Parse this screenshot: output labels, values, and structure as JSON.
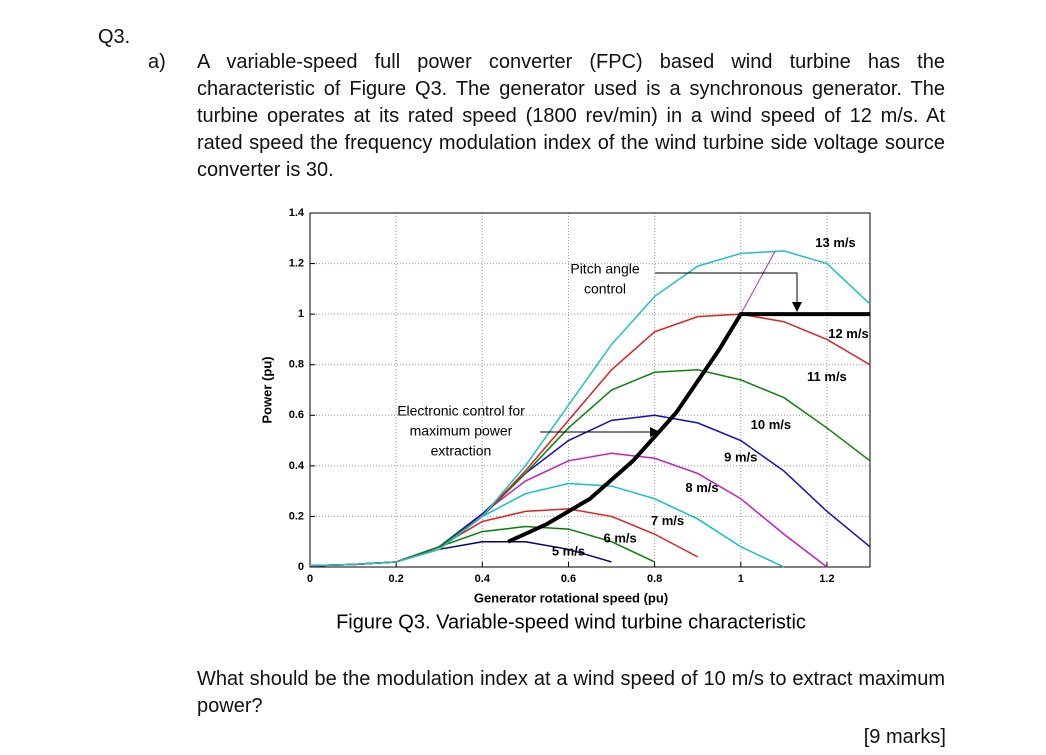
{
  "question": {
    "number": "Q3.",
    "part": "a)",
    "text": "A variable-speed full power converter (FPC) based wind turbine has the characteristic of Figure Q3. The generator used is a synchronous generator. The turbine operates at its rated speed (1800 rev/min) in a wind speed of 12 m/s. At rated speed the frequency modulation index of the wind turbine side voltage source converter is 30.",
    "caption": "Figure Q3. Variable-speed wind turbine characteristic",
    "prompt": "What should be the modulation index at a wind speed of 10 m/s to extract maximum power?",
    "marks": "[9 marks]"
  },
  "chart_data": {
    "type": "line",
    "x_label": "Generator rotational speed (pu)",
    "y_label": "Power (pu)",
    "x": [
      0,
      0.1,
      0.2,
      0.3,
      0.4,
      0.5,
      0.6,
      0.7,
      0.8,
      0.9,
      1.0,
      1.1,
      1.2,
      1.3
    ],
    "xlim": [
      0,
      1.3
    ],
    "ylim": [
      0,
      1.4
    ],
    "xticks": [
      0,
      0.2,
      0.4,
      0.6,
      0.8,
      1,
      1.2
    ],
    "yticks": [
      0,
      0.2,
      0.4,
      0.6,
      0.8,
      1,
      1.2,
      1.4
    ],
    "grid": true,
    "series": [
      {
        "name": "5 m/s",
        "color": "#000080",
        "values": [
          0.005,
          0.01,
          0.02,
          0.07,
          0.1,
          0.1,
          0.07,
          0.02,
          null,
          null,
          null,
          null,
          null,
          null
        ]
      },
      {
        "name": "6 m/s",
        "color": "#008000",
        "values": [
          0.005,
          0.01,
          0.02,
          0.08,
          0.14,
          0.16,
          0.15,
          0.1,
          0.02,
          null,
          null,
          null,
          null,
          null
        ]
      },
      {
        "name": "7 m/s",
        "color": "#e02020",
        "values": [
          0.005,
          0.01,
          0.02,
          0.08,
          0.18,
          0.22,
          0.23,
          0.2,
          0.13,
          0.04,
          null,
          null,
          null,
          null
        ]
      },
      {
        "name": "8 m/s",
        "color": "#10c0c8",
        "values": [
          0.005,
          0.01,
          0.02,
          0.08,
          0.2,
          0.29,
          0.33,
          0.32,
          0.27,
          0.19,
          0.08,
          0.0,
          null,
          null
        ]
      },
      {
        "name": "9 m/s",
        "color": "#c020c0",
        "values": [
          0.005,
          0.01,
          0.02,
          0.08,
          0.21,
          0.34,
          0.42,
          0.45,
          0.43,
          0.37,
          0.27,
          0.13,
          0.0,
          null
        ]
      },
      {
        "name": "10 m/s",
        "color": "#1010c0",
        "values": [
          0.005,
          0.01,
          0.02,
          0.08,
          0.21,
          0.37,
          0.5,
          0.58,
          0.6,
          0.57,
          0.5,
          0.38,
          0.22,
          0.08
        ]
      },
      {
        "name": "11 m/s",
        "color": "#108010",
        "values": [
          0.005,
          0.01,
          0.02,
          0.08,
          0.2,
          0.37,
          0.55,
          0.7,
          0.77,
          0.78,
          0.74,
          0.67,
          0.55,
          0.42
        ]
      },
      {
        "name": "12 m/s",
        "color": "#e02020",
        "values": [
          0.005,
          0.01,
          0.02,
          0.07,
          0.2,
          0.38,
          0.58,
          0.78,
          0.93,
          0.99,
          1.0,
          0.97,
          0.9,
          0.8
        ]
      },
      {
        "name": "13 m/s",
        "color": "#20c0c8",
        "values": [
          0.005,
          0.01,
          0.02,
          0.07,
          0.2,
          0.4,
          0.64,
          0.88,
          1.07,
          1.19,
          1.24,
          1.25,
          1.2,
          1.04
        ]
      },
      {
        "color": "#b030b0",
        "width": 1,
        "x": [
          1.0,
          1.08
        ],
        "values": [
          1.0,
          1.25
        ]
      },
      {
        "color": "#000000",
        "width": 4,
        "x": [
          0.46,
          0.55,
          0.65,
          0.75,
          0.85,
          0.95,
          1.0,
          1.3
        ],
        "values": [
          0.1,
          0.17,
          0.27,
          0.42,
          0.61,
          0.86,
          1.0,
          1.0
        ]
      }
    ],
    "annotations": [
      {
        "lines": [
          "Pitch angle",
          "control"
        ]
      },
      {
        "lines": [
          "Electronic control for",
          "maximum power",
          "extraction"
        ]
      }
    ]
  }
}
